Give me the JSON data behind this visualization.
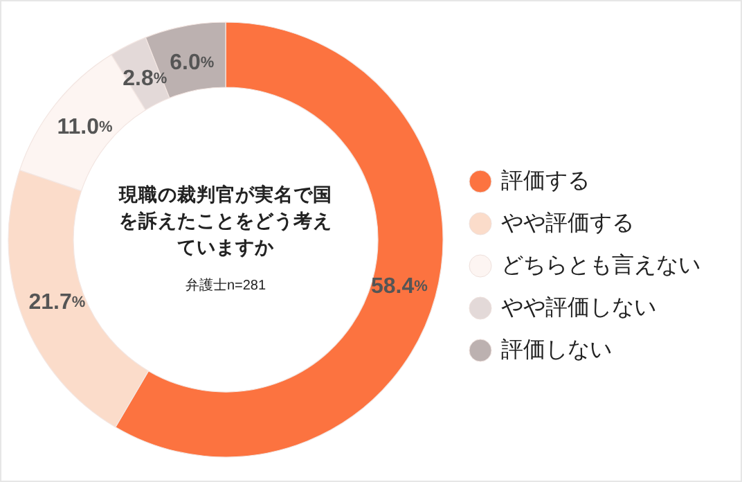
{
  "chart_data": {
    "type": "donut",
    "title": "現職の裁判官が実名で国を訴えたことをどう考えていますか",
    "subtitle": "弁護士n=281",
    "categories": [
      "評価する",
      "やや評価する",
      "どちらとも言えない",
      "やや評価しない",
      "評価しない"
    ],
    "values": [
      58.4,
      21.7,
      11.0,
      2.8,
      6.0
    ],
    "value_labels": [
      "58.4%",
      "21.7%",
      "11.0%",
      "2.8%",
      "6.0%"
    ],
    "colors": [
      "#fc7340",
      "#fbdcca",
      "#fdf5f2",
      "#e3d9d8",
      "#bcb1b0"
    ],
    "legend": "right"
  }
}
